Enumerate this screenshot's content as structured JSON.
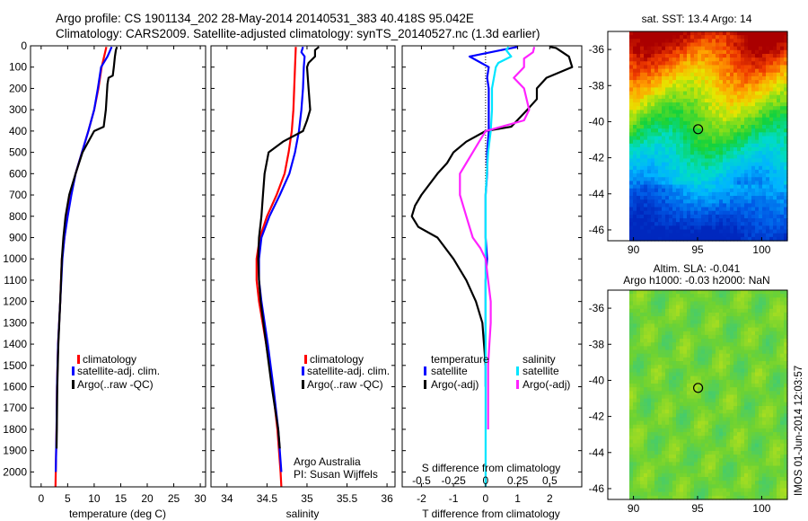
{
  "title_line1": "Argo profile: CS 1901134_202 28-May-2014 20140531_383 40.418S 95.042E",
  "title_line2": "Climatology: CARS2009. Satellite-adjusted climatology: synTS_20140527.nc (1.3d earlier)",
  "colors": {
    "climatology": "#ff0000",
    "satellite": "#0000ff",
    "argo": "#000000",
    "sal_satellite": "#00e5ff",
    "sal_argo": "#ff22ff"
  },
  "chart_data": [
    {
      "id": "temperature",
      "type": "line",
      "xlabel": "temperature (deg C)",
      "xlim": [
        -2,
        31
      ],
      "xticks": [
        0,
        5,
        10,
        15,
        20,
        25,
        30
      ],
      "xtick_labels": [
        "0",
        "5",
        "10",
        "15",
        "20",
        "25",
        "30"
      ],
      "ylim": [
        0,
        2070
      ],
      "yticks": [
        0,
        100,
        200,
        300,
        400,
        500,
        600,
        700,
        800,
        900,
        1000,
        1100,
        1200,
        1300,
        1400,
        1500,
        1600,
        1700,
        1800,
        1900,
        2000
      ],
      "ytick_labels": [
        "0",
        "100",
        "200",
        "300",
        "400",
        "500",
        "600",
        "700",
        "800",
        "900",
        "1000",
        "1100",
        "1200",
        "1300",
        "1400",
        "1500",
        "1600",
        "1700",
        "1800",
        "1900",
        "2000"
      ],
      "legend": [
        "climatology",
        "satellite-adj. clim.",
        "Argo(..raw -QC)"
      ],
      "series": [
        {
          "name": "climatology",
          "color": "#ff0000",
          "depth": [
            5,
            100,
            200,
            300,
            400,
            500,
            600,
            700,
            800,
            900,
            1000,
            1200,
            1400,
            1600,
            1800,
            2000,
            2070
          ],
          "values": [
            12.3,
            11.4,
            10.8,
            10.0,
            8.9,
            7.7,
            6.5,
            5.6,
            4.9,
            4.4,
            3.9,
            3.6,
            3.2,
            3.0,
            2.9,
            2.75,
            2.7
          ]
        },
        {
          "name": "satellite-adj. clim.",
          "color": "#0000ff",
          "depth": [
            5,
            50,
            100,
            200,
            300,
            400,
            500,
            600,
            700,
            800,
            900,
            1000,
            1200,
            1400,
            1600,
            1800,
            2000
          ],
          "values": [
            13.3,
            12.5,
            11.3,
            10.7,
            10.0,
            8.9,
            7.7,
            6.5,
            5.7,
            5.0,
            4.4,
            4.0,
            3.6,
            3.2,
            3.0,
            2.9,
            2.75
          ]
        },
        {
          "name": "Argo(..raw -QC)",
          "color": "#000000",
          "depth": [
            5,
            20,
            50,
            100,
            140,
            150,
            180,
            300,
            380,
            400,
            500,
            600,
            700,
            800,
            900,
            1000,
            1200,
            1400,
            1600,
            1800,
            1890
          ],
          "values": [
            14.3,
            14.1,
            13.9,
            13.7,
            13.5,
            12.7,
            12.5,
            12.2,
            11.8,
            10.0,
            7.8,
            6.5,
            5.3,
            4.6,
            4.2,
            3.9,
            3.6,
            3.25,
            3.05,
            2.95,
            2.9
          ]
        }
      ]
    },
    {
      "id": "salinity",
      "type": "line",
      "xlabel": "salinity",
      "xlim": [
        33.8,
        36.1
      ],
      "xticks": [
        34,
        34.5,
        35,
        35.5,
        36
      ],
      "xtick_labels": [
        "34",
        "34.5",
        "35",
        "35.5",
        "36"
      ],
      "ylim": [
        0,
        2070
      ],
      "legend": [
        "climatology",
        "satellite-adj. clim.",
        "Argo(..raw -QC)"
      ],
      "annotation": [
        "Argo Australia",
        "PI: Susan Wijffels"
      ],
      "series": [
        {
          "name": "climatology",
          "color": "#ff0000",
          "depth": [
            5,
            100,
            200,
            300,
            400,
            500,
            600,
            700,
            800,
            900,
            1000,
            1100,
            1200,
            1400,
            1600,
            1800,
            2000,
            2070
          ],
          "values": [
            34.86,
            34.85,
            34.84,
            34.83,
            34.81,
            34.77,
            34.72,
            34.62,
            34.5,
            34.41,
            34.37,
            34.37,
            34.4,
            34.49,
            34.57,
            34.63,
            34.67,
            34.68
          ]
        },
        {
          "name": "satellite-adj. clim.",
          "color": "#0000ff",
          "depth": [
            5,
            30,
            50,
            100,
            200,
            300,
            400,
            500,
            600,
            700,
            800,
            900,
            1000,
            1100,
            1200,
            1400,
            1600,
            1800,
            2000
          ],
          "values": [
            34.95,
            34.93,
            34.97,
            34.96,
            34.95,
            34.93,
            34.9,
            34.85,
            34.78,
            34.66,
            34.53,
            34.43,
            34.4,
            34.4,
            34.43,
            34.51,
            34.58,
            34.64,
            34.68
          ]
        },
        {
          "name": "Argo(..raw -QC)",
          "color": "#000000",
          "depth": [
            5,
            20,
            50,
            80,
            100,
            200,
            300,
            350,
            380,
            400,
            450,
            500,
            600,
            700,
            800,
            900,
            1000,
            1100,
            1200,
            1400,
            1600,
            1800,
            1890
          ],
          "values": [
            35.15,
            35.1,
            35.1,
            35.02,
            35.0,
            35.02,
            35.04,
            35.0,
            34.97,
            34.95,
            34.7,
            34.52,
            34.47,
            34.45,
            34.43,
            34.4,
            34.39,
            34.4,
            34.42,
            34.49,
            34.56,
            34.64,
            34.66
          ]
        }
      ]
    },
    {
      "id": "differences",
      "type": "line",
      "xlabel": "T difference from climatology",
      "xlim": [
        -2.6,
        3.0
      ],
      "xticks": [
        -2,
        -1,
        0,
        1,
        2
      ],
      "xtick_labels": [
        "-2",
        "-1",
        "0",
        "1",
        "2"
      ],
      "top_label": "S difference from climatology",
      "top_ticks": [
        -0.5,
        -0.25,
        0,
        0.25,
        0.5
      ],
      "top_tick_labels": [
        "-0.5",
        "-0.25",
        "0",
        "0.25",
        "0.5"
      ],
      "top_scale": 4,
      "ylim": [
        0,
        2070
      ],
      "legend_temperature_title": "temperature",
      "legend_salinity_title": "salinity",
      "legend_temperature": [
        "satellite",
        "Argo(-adj)"
      ],
      "legend_salinity": [
        "satellite",
        "Argo(-adj)"
      ],
      "series": [
        {
          "name": "T satellite",
          "color": "#0000ff",
          "depth": [
            5,
            20,
            50,
            100,
            150,
            200,
            300,
            400,
            500,
            600,
            700,
            800,
            900,
            1000,
            1100,
            1200,
            1300,
            1400,
            1500,
            1600
          ],
          "values": [
            1.0,
            0.5,
            -0.5,
            0.1,
            0.05,
            0.1,
            0.1,
            0.1,
            0.05,
            0.05,
            0.0,
            0.0,
            0.0,
            0.05,
            0.0,
            0.0,
            0.0,
            0.0,
            0.0,
            0.0
          ]
        },
        {
          "name": "T Argo(-adj)",
          "color": "#000000",
          "depth": [
            5,
            10,
            50,
            100,
            150,
            200,
            250,
            300,
            380,
            400,
            450,
            500,
            550,
            600,
            700,
            750,
            800,
            850,
            900,
            1000,
            1100,
            1200,
            1300,
            1400,
            1500
          ],
          "values": [
            2.0,
            2.2,
            2.6,
            2.7,
            1.9,
            1.6,
            1.6,
            1.3,
            0.8,
            0.0,
            -0.6,
            -1.0,
            -1.2,
            -1.5,
            -2.0,
            -2.2,
            -2.3,
            -2.1,
            -1.5,
            -1.0,
            -0.6,
            -0.3,
            -0.1,
            -0.05,
            0.0
          ]
        },
        {
          "name": "S satellite",
          "color": "#00e5ff",
          "depth": [
            5,
            20,
            50,
            80,
            100,
            200,
            300,
            400,
            500,
            600,
            700,
            800,
            900,
            1000,
            1200,
            1400,
            1600,
            1800,
            2000,
            2070
          ],
          "values": [
            0.18,
            0.16,
            0.2,
            0.1,
            0.08,
            0.05,
            0.05,
            0.04,
            0.02,
            0.01,
            0.0,
            0.0,
            0.0,
            0.0,
            0.0,
            0.0,
            0.0,
            0.0,
            0.0,
            0.0
          ]
        },
        {
          "name": "S Argo(-adj)",
          "color": "#ff22ff",
          "depth": [
            5,
            30,
            60,
            100,
            150,
            200,
            300,
            350,
            400,
            450,
            500,
            550,
            600,
            700,
            800,
            900,
            950,
            1000,
            1100,
            1200,
            1300,
            1400,
            1500,
            1600,
            1700,
            1800
          ],
          "values": [
            0.38,
            0.37,
            0.3,
            0.3,
            0.22,
            0.3,
            0.34,
            0.3,
            0.0,
            -0.05,
            -0.1,
            -0.15,
            -0.2,
            -0.2,
            -0.15,
            -0.1,
            -0.04,
            0.0,
            0.02,
            0.04,
            0.04,
            0.03,
            0.02,
            0.02,
            0.02,
            0.02
          ]
        }
      ]
    },
    {
      "id": "sst_map",
      "type": "heatmap",
      "title": "sat. SST: 13.4 Argo: 14",
      "xticks": [
        90,
        95,
        100
      ],
      "yticks": [
        -36,
        -38,
        -40,
        -42,
        -44,
        -46
      ],
      "xlim": [
        88,
        102
      ],
      "ylim": [
        -46.6,
        -35
      ],
      "marker": [
        95.042,
        -40.418
      ]
    },
    {
      "id": "sla_map",
      "type": "heatmap",
      "title_line1": "Altim. SLA: -0.041",
      "title_line2": "Argo h1000: -0.03 h2000: NaN",
      "xticks": [
        90,
        95,
        100
      ],
      "yticks": [
        -36,
        -38,
        -40,
        -42,
        -44,
        -46
      ],
      "xlim": [
        88,
        102
      ],
      "ylim": [
        -46.6,
        -35
      ],
      "marker": [
        95.042,
        -40.418
      ]
    }
  ],
  "footer_stamp": "IMOS 01-Jun-2014 12:03:57"
}
